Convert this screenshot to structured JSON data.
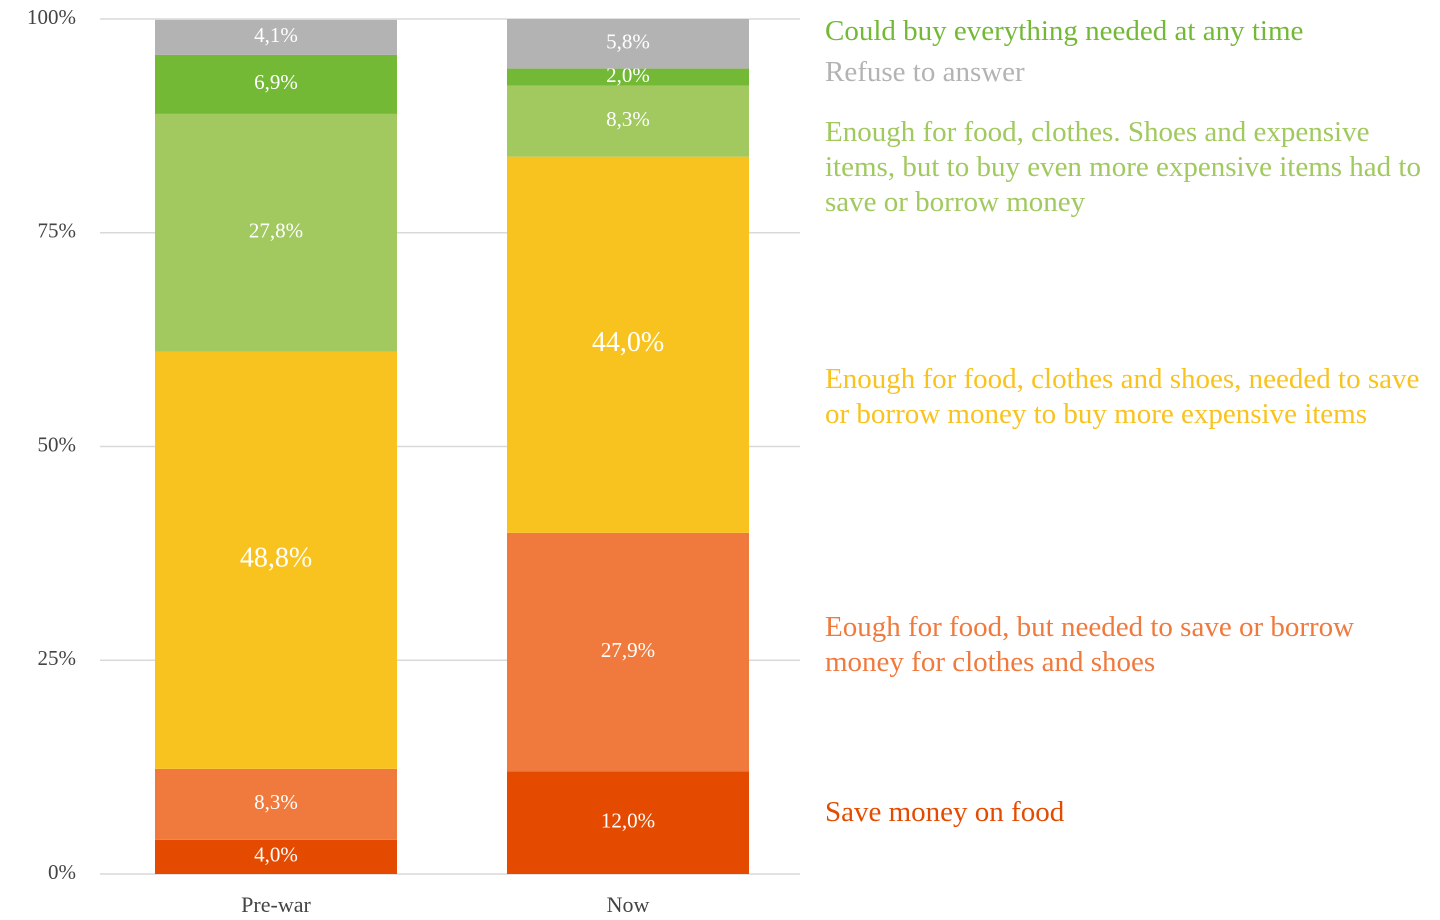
{
  "chart_data": {
    "type": "stacked_bar",
    "categories": [
      "Pre-war",
      "Now"
    ],
    "series": [
      {
        "name": "Save money on food",
        "color": "#e54b00",
        "values": [
          4.0,
          12.0
        ],
        "value_labels": [
          "4,0%",
          "12,0%"
        ]
      },
      {
        "name": "Eough for food, but needed to save or borrow money for clothes and shoes",
        "color": "#f07a3e",
        "values": [
          8.3,
          27.9
        ],
        "value_labels": [
          "8,3%",
          "27,9%"
        ]
      },
      {
        "name": "Enough for food, clothes and shoes, needed to save or borrow money to buy more expensive items",
        "color": "#f9c31f",
        "values": [
          48.8,
          44.0
        ],
        "value_labels": [
          "48,8%",
          "44,0%"
        ]
      },
      {
        "name": "Enough for food, clothes. Shoes and expensive items, but to buy even more expensive items had to save or borrow money",
        "color": "#a1c95f",
        "values": [
          27.8,
          8.3
        ],
        "value_labels": [
          "27,8%",
          "8,3%"
        ]
      },
      {
        "name": "Could buy everything needed at any time",
        "color": "#73b936",
        "values": [
          6.9,
          2.0
        ],
        "value_labels": [
          "6,9%",
          "2,0%"
        ]
      },
      {
        "name": "Refuse to answer",
        "color": "#b3b3b3",
        "values": [
          4.1,
          5.8
        ],
        "value_labels": [
          "4,1%",
          "5,8%"
        ]
      }
    ],
    "ylim": [
      0,
      100
    ],
    "yticks": [
      {
        "value": 0,
        "label": "0%"
      },
      {
        "value": 25,
        "label": "25%"
      },
      {
        "value": 50,
        "label": "50%"
      },
      {
        "value": 75,
        "label": "75%"
      },
      {
        "value": 100,
        "label": "100%"
      }
    ],
    "grid": true
  }
}
